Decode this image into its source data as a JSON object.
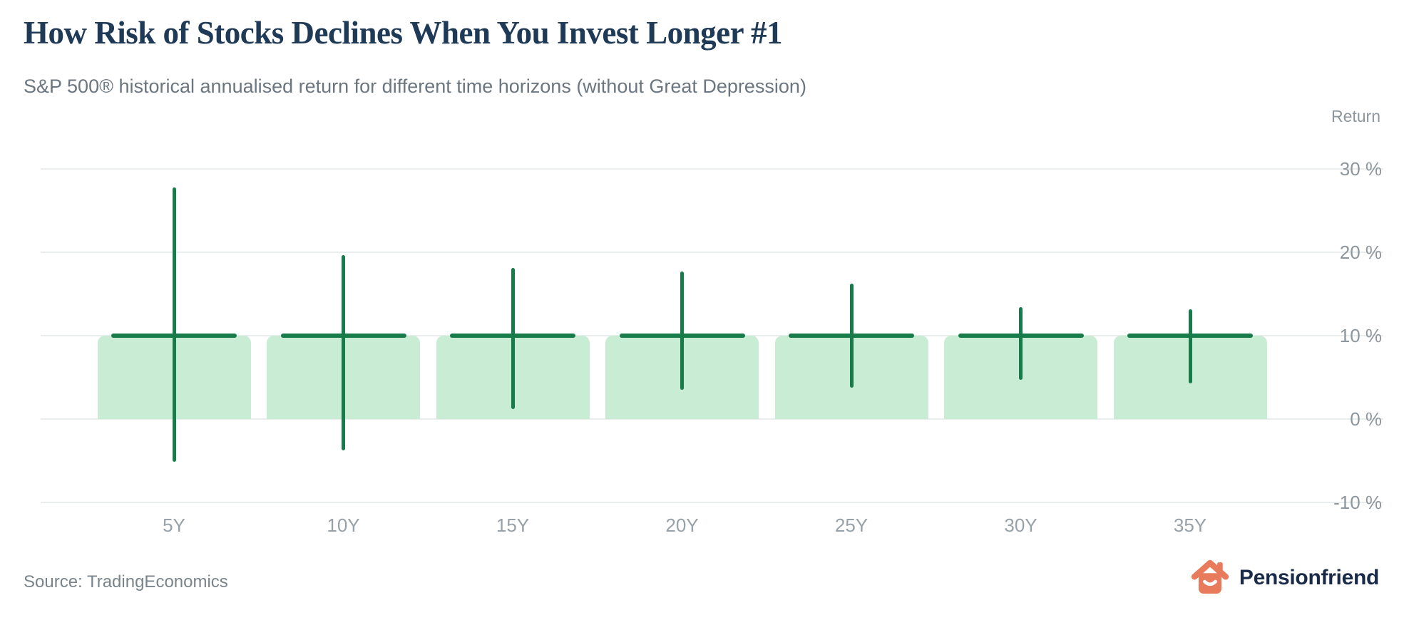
{
  "header": {
    "title": "How Risk of Stocks Declines When You Invest Longer #1",
    "subtitle": "S&P 500® historical annualised return for different time horizons (without Great Depression)"
  },
  "footer": {
    "source": "Source: TradingEconomics",
    "brand": "Pensionfriend"
  },
  "colors": {
    "title_navy": "#1e3a57",
    "subtitle_gray": "#6b7680",
    "axis_gray": "#8d969c",
    "grid_gray": "#eaedee",
    "bar_fill_green": "#c9edd4",
    "line_green": "#177c4a",
    "brand_orange": "#e87b5b",
    "brand_navy": "#1a2b4a"
  },
  "chart_data": {
    "type": "bar",
    "subtype": "range-bar",
    "title": "How Risk of Stocks Declines When You Invest Longer #1",
    "subtitle": "S&P 500® historical annualised return for different time horizons (without Great Depression)",
    "ylabel": "Return",
    "xlabel": "",
    "categories": [
      "5Y",
      "10Y",
      "15Y",
      "20Y",
      "25Y",
      "30Y",
      "35Y"
    ],
    "series": [
      {
        "name": "max_annualised_return_pct",
        "values": [
          27.8,
          19.7,
          18.1,
          17.7,
          16.2,
          13.4,
          13.2
        ]
      },
      {
        "name": "mean_annualised_return_pct",
        "values": [
          10,
          10,
          10,
          10,
          10,
          10,
          10
        ]
      },
      {
        "name": "min_annualised_return_pct",
        "values": [
          -5.1,
          -3.8,
          1.2,
          3.5,
          3.8,
          4.7,
          4.3
        ]
      }
    ],
    "bar_value": 10,
    "yticks": [
      30,
      20,
      10,
      0,
      -10
    ],
    "ytick_labels": [
      "30 %",
      "20 %",
      "10 %",
      "0 %",
      "-10 %"
    ],
    "ylim": [
      -13,
      33
    ],
    "grid": true,
    "legend": false
  }
}
